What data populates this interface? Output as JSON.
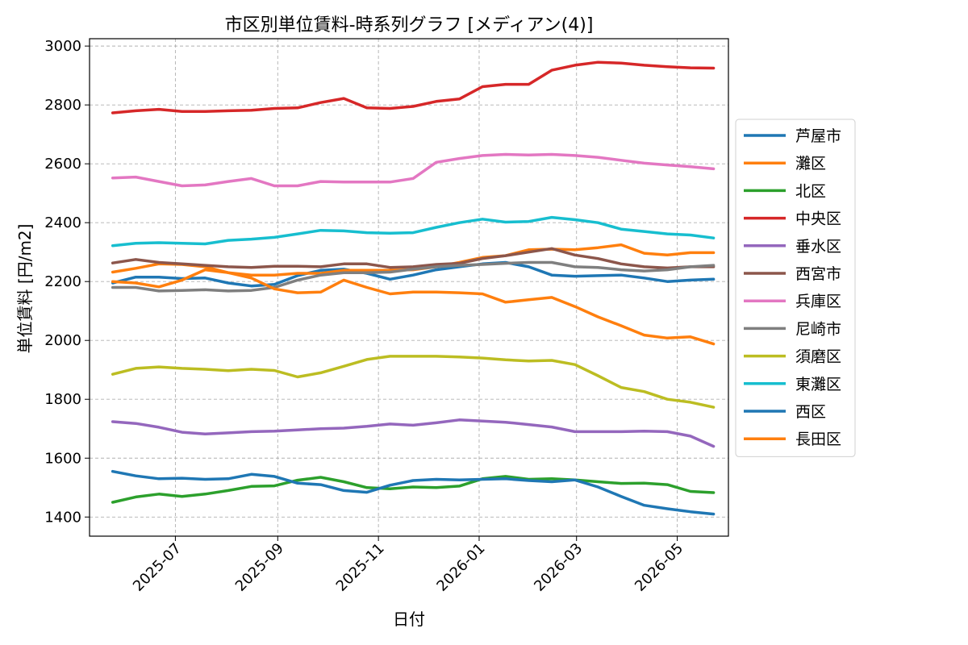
{
  "chart_data": {
    "type": "line",
    "title": "市区別単位賃料-時系列グラフ [メディアン(4)]",
    "xlabel": "日付",
    "ylabel": "単位賃料 [円/m2]",
    "ylim": [
      1335,
      3025
    ],
    "yticks": [
      1400,
      1600,
      1800,
      2000,
      2200,
      2400,
      2600,
      2800,
      3000
    ],
    "x_range": [
      "2025-05-10",
      "2026-06-01"
    ],
    "xticks": [
      "2025-07",
      "2025-09",
      "2025-11",
      "2026-01",
      "2026-03",
      "2026-05"
    ],
    "x": [
      "2025-05-24",
      "2025-06-07",
      "2025-06-21",
      "2025-07-05",
      "2025-07-19",
      "2025-08-02",
      "2025-08-16",
      "2025-08-30",
      "2025-09-13",
      "2025-09-27",
      "2025-10-11",
      "2025-10-25",
      "2025-11-08",
      "2025-11-22",
      "2025-12-06",
      "2025-12-20",
      "2026-01-03",
      "2026-01-17",
      "2026-01-31",
      "2026-02-14",
      "2026-02-28",
      "2026-03-14",
      "2026-03-28",
      "2026-04-11",
      "2026-04-25",
      "2026-05-09",
      "2026-05-23"
    ],
    "grid": true,
    "legend_position": "center-right",
    "series": [
      {
        "name": "芦屋市",
        "color": "#1f77b4",
        "values": [
          2195,
          2215,
          2215,
          2210,
          2212,
          2195,
          2185,
          2190,
          2220,
          2238,
          2242,
          2228,
          2208,
          2222,
          2240,
          2250,
          2260,
          2265,
          2250,
          2222,
          2218,
          2220,
          2222,
          2212,
          2200,
          2205,
          2208
        ]
      },
      {
        "name": "灘区",
        "color": "#ff7f0e",
        "values": [
          2232,
          2245,
          2260,
          2258,
          2250,
          2230,
          2222,
          2222,
          2228,
          2228,
          2238,
          2238,
          2238,
          2240,
          2250,
          2265,
          2282,
          2288,
          2308,
          2310,
          2308,
          2315,
          2325,
          2296,
          2290,
          2298,
          2298
        ]
      },
      {
        "name": "北区",
        "color": "#2ca02c",
        "values": [
          1450,
          1468,
          1478,
          1470,
          1478,
          1490,
          1504,
          1506,
          1525,
          1535,
          1520,
          1500,
          1496,
          1502,
          1500,
          1505,
          1530,
          1538,
          1528,
          1530,
          1526,
          1520,
          1514,
          1515,
          1510,
          1487,
          1483
        ]
      },
      {
        "name": "中央区",
        "color": "#d62728",
        "values": [
          2773,
          2780,
          2785,
          2778,
          2778,
          2780,
          2782,
          2788,
          2790,
          2808,
          2822,
          2790,
          2788,
          2795,
          2812,
          2820,
          2862,
          2870,
          2870,
          2918,
          2935,
          2945,
          2942,
          2935,
          2930,
          2926,
          2925
        ]
      },
      {
        "name": "垂水区",
        "color": "#9467bd",
        "values": [
          1724,
          1718,
          1705,
          1688,
          1682,
          1686,
          1690,
          1692,
          1696,
          1700,
          1702,
          1708,
          1716,
          1712,
          1720,
          1730,
          1726,
          1722,
          1714,
          1706,
          1690,
          1690,
          1690,
          1692,
          1690,
          1675,
          1640
        ]
      },
      {
        "name": "西宮市",
        "color": "#8c564b",
        "values": [
          2263,
          2275,
          2265,
          2260,
          2255,
          2250,
          2248,
          2252,
          2252,
          2250,
          2260,
          2260,
          2248,
          2250,
          2258,
          2262,
          2278,
          2288,
          2300,
          2312,
          2290,
          2278,
          2260,
          2250,
          2246,
          2250,
          2250
        ]
      },
      {
        "name": "兵庫区",
        "color": "#e377c2",
        "values": [
          2552,
          2555,
          2540,
          2525,
          2528,
          2540,
          2550,
          2525,
          2525,
          2540,
          2538,
          2538,
          2538,
          2550,
          2605,
          2618,
          2628,
          2632,
          2630,
          2632,
          2628,
          2622,
          2612,
          2602,
          2596,
          2590,
          2583
        ]
      },
      {
        "name": "尼崎市",
        "color": "#7f7f7f",
        "values": [
          2180,
          2180,
          2168,
          2170,
          2172,
          2168,
          2170,
          2180,
          2205,
          2222,
          2230,
          2230,
          2232,
          2242,
          2250,
          2255,
          2258,
          2262,
          2265,
          2265,
          2250,
          2248,
          2240,
          2236,
          2240,
          2250,
          2255
        ]
      },
      {
        "name": "須磨区",
        "color": "#bcbd22",
        "values": [
          1885,
          1905,
          1910,
          1905,
          1902,
          1897,
          1902,
          1898,
          1876,
          1890,
          1912,
          1935,
          1946,
          1946,
          1946,
          1944,
          1940,
          1934,
          1930,
          1932,
          1918,
          1880,
          1840,
          1826,
          1800,
          1790,
          1773
        ]
      },
      {
        "name": "東灘区",
        "color": "#17becf",
        "values": [
          2322,
          2330,
          2332,
          2330,
          2328,
          2340,
          2344,
          2350,
          2362,
          2374,
          2372,
          2366,
          2364,
          2366,
          2384,
          2400,
          2412,
          2402,
          2404,
          2418,
          2410,
          2400,
          2378,
          2370,
          2362,
          2358,
          2348
        ]
      },
      {
        "name": "西区",
        "color": "#1f77b4",
        "values": [
          1555,
          1540,
          1530,
          1532,
          1528,
          1530,
          1545,
          1538,
          1515,
          1510,
          1490,
          1484,
          1508,
          1524,
          1528,
          1526,
          1528,
          1530,
          1524,
          1520,
          1526,
          1502,
          1470,
          1440,
          1428,
          1418,
          1410
        ]
      },
      {
        "name": "長田区",
        "color": "#ff7f0e",
        "values": [
          2200,
          2195,
          2182,
          2205,
          2240,
          2230,
          2212,
          2175,
          2162,
          2164,
          2205,
          2180,
          2158,
          2164,
          2164,
          2162,
          2158,
          2130,
          2138,
          2146,
          2115,
          2080,
          2050,
          2018,
          2008,
          2012,
          1988
        ]
      }
    ]
  }
}
